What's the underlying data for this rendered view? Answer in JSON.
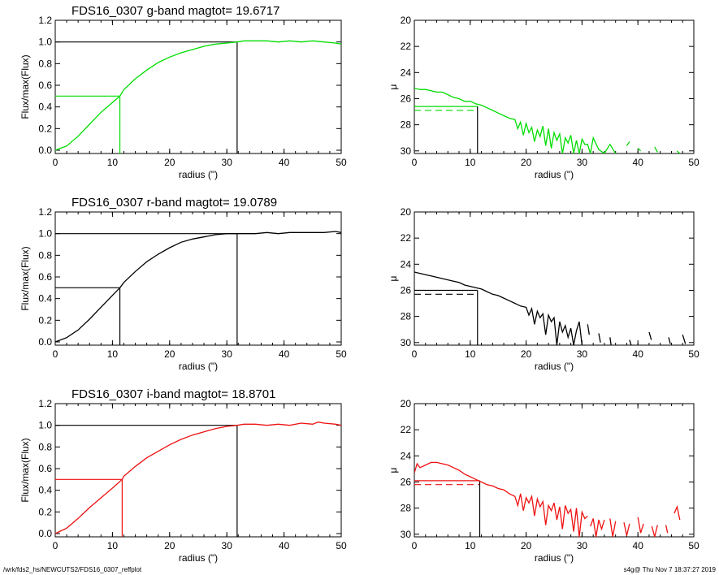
{
  "figure": {
    "footer_left": "/wrk/fds2_hs/NEWCUTS2/FDS16_0307_reffplot",
    "footer_right": "s4g@  Thu Nov  7 18:37:27 2019"
  },
  "chart_data": [
    {
      "type": "line",
      "panel": "growth-curve",
      "band": "g",
      "title": "FDS16_0307 g-band  magtot=      19.6717",
      "xlabel": "radius (\")",
      "ylabel": "Flux/max(Flux)",
      "xlim": [
        0,
        50
      ],
      "ylim": [
        -0.03,
        1.2
      ],
      "xticks": [
        0,
        10,
        20,
        30,
        40,
        50
      ],
      "yticks": [
        0.0,
        0.2,
        0.4,
        0.6,
        0.8,
        1.0,
        1.2
      ],
      "ytick_labels": [
        "0.0",
        "0.2",
        "0.4",
        "0.6",
        "0.8",
        "1.0",
        "1.2"
      ],
      "color": "#00dd00",
      "reference_color": "#000000",
      "r_half": 11.3,
      "r_total": 31.8,
      "series": [
        {
          "x": [
            0,
            2,
            4,
            6,
            8,
            10,
            11.3,
            12,
            14,
            16,
            18,
            20,
            22,
            24,
            26,
            28,
            30,
            31.8,
            33,
            35,
            37,
            39,
            41,
            43,
            45,
            47,
            49,
            50
          ],
          "values": [
            0.0,
            0.04,
            0.13,
            0.24,
            0.35,
            0.44,
            0.5,
            0.56,
            0.66,
            0.74,
            0.81,
            0.86,
            0.9,
            0.93,
            0.96,
            0.98,
            0.99,
            1.0,
            1.01,
            1.01,
            1.01,
            1.0,
            1.01,
            1.0,
            1.01,
            1.0,
            0.99,
            0.98
          ]
        }
      ]
    },
    {
      "type": "line",
      "panel": "surface-brightness",
      "band": "g",
      "title": "",
      "xlabel": "radius (\")",
      "ylabel": "μ",
      "xlim": [
        0,
        50
      ],
      "ylim": [
        30.2,
        20
      ],
      "xticks": [
        0,
        10,
        20,
        30,
        40,
        50
      ],
      "yticks": [
        20,
        22,
        24,
        26,
        28,
        30
      ],
      "ytick_labels": [
        "20",
        "22",
        "24",
        "26",
        "28",
        "30"
      ],
      "color": "#00dd00",
      "reference_color": "#00dd00",
      "r_half": 11.3,
      "mu_half": 26.6,
      "mu_mean": 26.9,
      "series": [
        {
          "x": [
            0,
            1,
            2,
            3,
            4,
            5,
            6,
            7,
            8,
            9,
            10,
            11,
            12,
            13,
            14,
            15,
            16,
            17,
            18,
            18.5,
            19,
            19.5,
            20,
            20.5,
            21,
            21.5,
            22,
            22.5,
            23,
            23.5,
            24,
            24.5,
            25,
            25.5,
            26,
            26.5,
            27,
            27.5,
            28,
            28.5,
            29,
            29.5,
            30,
            30.5,
            31,
            31.5,
            32,
            33,
            34,
            35,
            36
          ],
          "values": [
            25.2,
            25.3,
            25.3,
            25.4,
            25.5,
            25.5,
            25.7,
            25.9,
            26.0,
            26.2,
            26.2,
            26.4,
            26.5,
            26.7,
            26.9,
            27.1,
            27.3,
            27.5,
            27.6,
            28.3,
            27.8,
            28.8,
            27.9,
            28.6,
            28.2,
            29.3,
            28.4,
            28.9,
            28.1,
            29.6,
            28.3,
            29.8,
            28.6,
            29.2,
            28.7,
            30.2,
            29.0,
            29.4,
            28.8,
            30.2,
            29.2,
            30.2,
            29.1,
            29.5,
            29.5,
            30.2,
            29.0,
            29.9,
            30.2,
            29.5,
            30.2
          ]
        },
        {
          "x": [
            38,
            38.5
          ],
          "values": [
            29.6,
            29.3
          ]
        },
        {
          "x": [
            40,
            40.5
          ],
          "values": [
            29.8,
            30.0
          ]
        },
        {
          "x": [
            43,
            43.5
          ],
          "values": [
            29.7,
            30.1
          ]
        },
        {
          "x": [
            47,
            47.5
          ],
          "values": [
            30.0,
            30.2
          ]
        }
      ]
    },
    {
      "type": "line",
      "panel": "growth-curve",
      "band": "r",
      "title": "FDS16_0307 r-band  magtot=      19.0789",
      "xlabel": "radius (\")",
      "ylabel": "Flux/max(Flux)",
      "xlim": [
        0,
        50
      ],
      "ylim": [
        -0.03,
        1.2
      ],
      "xticks": [
        0,
        10,
        20,
        30,
        40,
        50
      ],
      "yticks": [
        0.0,
        0.2,
        0.4,
        0.6,
        0.8,
        1.0,
        1.2
      ],
      "ytick_labels": [
        "0.0",
        "0.2",
        "0.4",
        "0.6",
        "0.8",
        "1.0",
        "1.2"
      ],
      "color": "#000000",
      "reference_color": "#000000",
      "r_half": 11.3,
      "r_total": 31.8,
      "series": [
        {
          "x": [
            0,
            2,
            4,
            6,
            8,
            10,
            11.3,
            12,
            14,
            16,
            18,
            20,
            22,
            24,
            26,
            28,
            30,
            31.8,
            33,
            35,
            37,
            39,
            41,
            43,
            45,
            47,
            49,
            50
          ],
          "values": [
            0.0,
            0.04,
            0.11,
            0.21,
            0.32,
            0.43,
            0.5,
            0.55,
            0.65,
            0.74,
            0.81,
            0.87,
            0.92,
            0.95,
            0.97,
            0.99,
            1.0,
            1.0,
            1.0,
            1.0,
            1.01,
            1.0,
            1.01,
            1.01,
            1.01,
            1.01,
            1.02,
            1.01
          ]
        }
      ]
    },
    {
      "type": "line",
      "panel": "surface-brightness",
      "band": "r",
      "title": "",
      "xlabel": "radius (\")",
      "ylabel": "μ",
      "xlim": [
        0,
        50
      ],
      "ylim": [
        30.2,
        20
      ],
      "xticks": [
        0,
        10,
        20,
        30,
        40,
        50
      ],
      "yticks": [
        20,
        22,
        24,
        26,
        28,
        30
      ],
      "ytick_labels": [
        "20",
        "22",
        "24",
        "26",
        "28",
        "30"
      ],
      "color": "#000000",
      "reference_color": "#000000",
      "r_half": 11.3,
      "mu_half": 26.0,
      "mu_mean": 26.3,
      "series": [
        {
          "x": [
            0,
            1,
            2,
            3,
            4,
            5,
            6,
            7,
            8,
            9,
            10,
            11,
            12,
            13,
            14,
            15,
            16,
            17,
            18,
            19,
            20,
            20.5,
            21,
            21.5,
            22,
            22.5,
            23,
            23.5,
            24,
            24.5,
            25,
            25.5,
            26,
            26.5,
            27,
            27.5,
            28,
            28.5,
            29,
            29.5,
            30
          ],
          "values": [
            24.6,
            24.7,
            24.8,
            24.9,
            25.0,
            25.1,
            25.2,
            25.3,
            25.4,
            25.6,
            25.7,
            25.8,
            25.9,
            26.1,
            26.3,
            26.4,
            26.6,
            26.8,
            27.0,
            27.2,
            27.3,
            27.9,
            27.4,
            28.6,
            27.6,
            28.1,
            27.8,
            29.4,
            27.9,
            28.4,
            28.1,
            30.2,
            28.4,
            29.2,
            28.7,
            29.6,
            28.9,
            30.2,
            29.1,
            28.4,
            30.2
          ]
        },
        {
          "x": [
            31,
            31.3
          ],
          "values": [
            28.6,
            29.4
          ]
        },
        {
          "x": [
            33,
            33.3
          ],
          "values": [
            29.3,
            30.0
          ]
        },
        {
          "x": [
            35,
            35.2
          ],
          "values": [
            29.6,
            30.2
          ]
        },
        {
          "x": [
            38.5,
            38.8
          ],
          "values": [
            29.8,
            30.2
          ]
        },
        {
          "x": [
            42,
            42.4
          ],
          "values": [
            29.2,
            29.8
          ]
        },
        {
          "x": [
            45.5,
            45.8
          ],
          "values": [
            29.6,
            30.1
          ]
        },
        {
          "x": [
            48,
            48.5
          ],
          "values": [
            29.4,
            30.1
          ]
        }
      ]
    },
    {
      "type": "line",
      "panel": "growth-curve",
      "band": "i",
      "title": "FDS16_0307 i-band  magtot=      18.8701",
      "xlabel": "radius (\")",
      "ylabel": "Flux/max(Flux)",
      "xlim": [
        0,
        50
      ],
      "ylim": [
        -0.03,
        1.2
      ],
      "xticks": [
        0,
        10,
        20,
        30,
        40,
        50
      ],
      "yticks": [
        0.0,
        0.2,
        0.4,
        0.6,
        0.8,
        1.0,
        1.2
      ],
      "ytick_labels": [
        "0.0",
        "0.2",
        "0.4",
        "0.6",
        "0.8",
        "1.0",
        "1.2"
      ],
      "color": "#ee1111",
      "reference_color": "#000000",
      "r_half": 11.7,
      "r_total": 31.8,
      "series": [
        {
          "x": [
            0,
            2,
            4,
            6,
            8,
            10,
            11.7,
            12,
            14,
            16,
            18,
            20,
            22,
            24,
            26,
            28,
            30,
            31.8,
            33,
            35,
            37,
            39,
            41,
            43,
            45,
            46,
            47,
            49,
            50
          ],
          "values": [
            0.0,
            0.05,
            0.14,
            0.24,
            0.33,
            0.42,
            0.5,
            0.53,
            0.62,
            0.7,
            0.76,
            0.82,
            0.87,
            0.91,
            0.94,
            0.97,
            0.99,
            1.0,
            1.01,
            1.01,
            1.0,
            1.01,
            1.0,
            1.02,
            1.01,
            1.03,
            1.02,
            1.01,
            1.0
          ]
        }
      ]
    },
    {
      "type": "line",
      "panel": "surface-brightness",
      "band": "i",
      "title": "",
      "xlabel": "radius (\")",
      "ylabel": "μ",
      "xlim": [
        0,
        50
      ],
      "ylim": [
        30.2,
        20
      ],
      "xticks": [
        0,
        10,
        20,
        30,
        40,
        50
      ],
      "yticks": [
        20,
        22,
        24,
        26,
        28,
        30
      ],
      "ytick_labels": [
        "20",
        "22",
        "24",
        "26",
        "28",
        "30"
      ],
      "color": "#ee1111",
      "reference_color": "#ee1111",
      "r_half": 11.7,
      "mu_half": 25.9,
      "mu_mean": 26.2,
      "series": [
        {
          "x": [
            0,
            0.5,
            1,
            2,
            3,
            4,
            5,
            6,
            7,
            8,
            9,
            10,
            11,
            12,
            13,
            14,
            15,
            16,
            17,
            18,
            18.5,
            19,
            19.5,
            20,
            20.5,
            21,
            21.5,
            22,
            22.5,
            23,
            23.5,
            24,
            24.5,
            25,
            25.5,
            26,
            26.5,
            27,
            27.5,
            28,
            28.5,
            29,
            29.5,
            30,
            30.5,
            31
          ],
          "values": [
            25.3,
            24.6,
            24.9,
            24.7,
            24.5,
            24.5,
            24.6,
            24.7,
            24.9,
            25.1,
            25.4,
            25.6,
            25.8,
            26.0,
            26.2,
            26.3,
            26.5,
            26.6,
            26.9,
            27.1,
            27.8,
            26.9,
            28.2,
            27.2,
            27.6,
            27.1,
            28.6,
            27.3,
            27.9,
            27.5,
            29.3,
            27.8,
            28.2,
            27.6,
            28.9,
            27.9,
            29.6,
            27.8,
            28.4,
            28.1,
            29.8,
            28.0,
            30.2,
            28.3,
            28.8,
            28.6
          ]
        },
        {
          "x": [
            31.5,
            32,
            32.5,
            33,
            33.5,
            34
          ],
          "values": [
            29.4,
            28.8,
            30.2,
            28.9,
            29.6,
            28.9
          ]
        },
        {
          "x": [
            35,
            35.5,
            36
          ],
          "values": [
            28.8,
            30.2,
            29.0
          ]
        },
        {
          "x": [
            37.5,
            38,
            38.5
          ],
          "values": [
            29.1,
            30.1,
            29.2
          ]
        },
        {
          "x": [
            40,
            40.5,
            41
          ],
          "values": [
            28.7,
            29.9,
            29.2
          ]
        },
        {
          "x": [
            42.5,
            43,
            43.5
          ],
          "values": [
            29.4,
            30.2,
            29.3
          ]
        },
        {
          "x": [
            45,
            45.3
          ],
          "values": [
            29.3,
            29.9
          ]
        },
        {
          "x": [
            46.5,
            47,
            47.5
          ],
          "values": [
            28.4,
            27.9,
            28.9
          ]
        }
      ]
    }
  ]
}
